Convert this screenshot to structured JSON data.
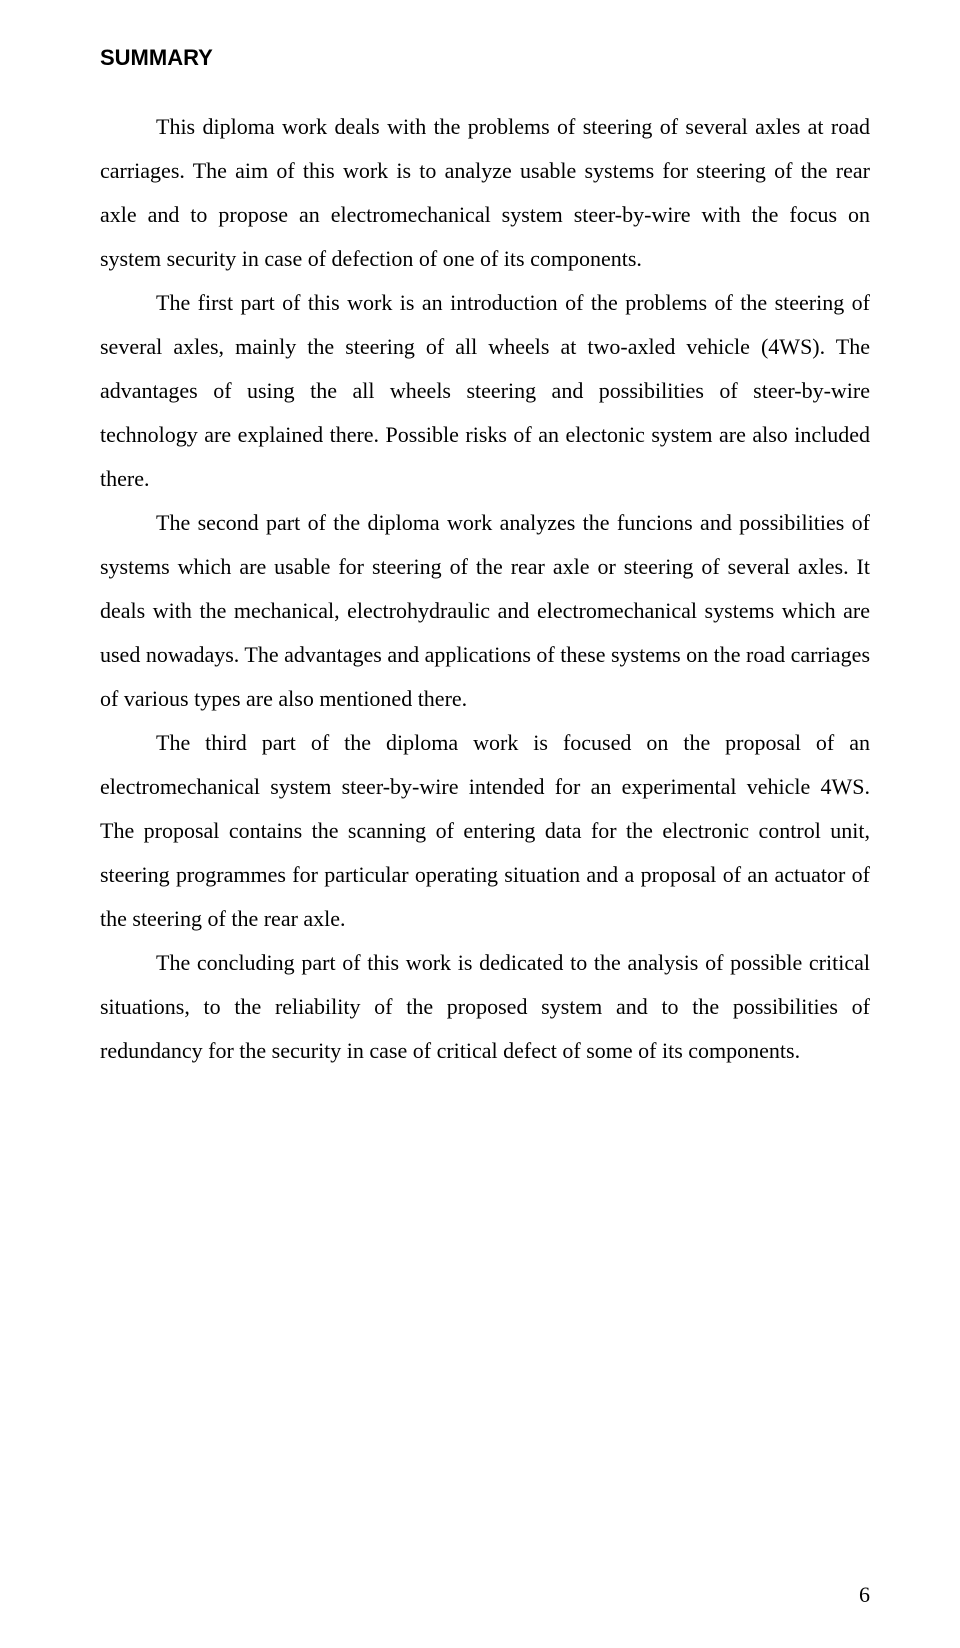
{
  "heading": "SUMMARY",
  "paragraphs": {
    "p1a": "This diploma work deals with the problems of steering of several axles at road carriages. The aim of this work is to analyze usable systems for steering of the rear axle and to propose an electromechanical system steer-by-wire with the focus on system security in case of defection of one of its components.",
    "p2a": "The first part of this work is an introduction of the problems of the steering of several axles, mainly the steering of all wheels at two-axled vehicle (4WS). The advantages of using the all wheels steering and possibilities of steer-by-wire technology are explained there. Possible risks of an electonic system are also included there.",
    "p3a": "The second part of the diploma work analyzes the funcions and possibilities of systems which are usable for steering of the rear axle or steering of several axles. It deals with the mechanical, electrohydraulic and electromechanical systems which are used nowadays. The advantages and applications of these systems on the road carriages of various types are also mentioned there.",
    "p4a": "The third part of the diploma work is focused on the proposal of an electromechanical system steer-by-wire intended for an experimental vehicle 4WS. The proposal contains the scanning of entering data for the electronic control unit, steering programmes for particular operating situation and a proposal of an actuator of the steering of the rear axle.",
    "p5a": "The concluding part of this work is dedicated to the analysis of possible critical situations, to the reliability of the proposed system and to the possibilities of redundancy for the security in case of  critical defect of some of its components."
  },
  "page_number": "6",
  "colors": {
    "text": "#000000",
    "background": "#ffffff"
  },
  "typography": {
    "body_font": "Times New Roman",
    "heading_font": "Verdana",
    "body_fontsize": 22,
    "heading_fontsize": 22,
    "line_height": 2.0
  }
}
